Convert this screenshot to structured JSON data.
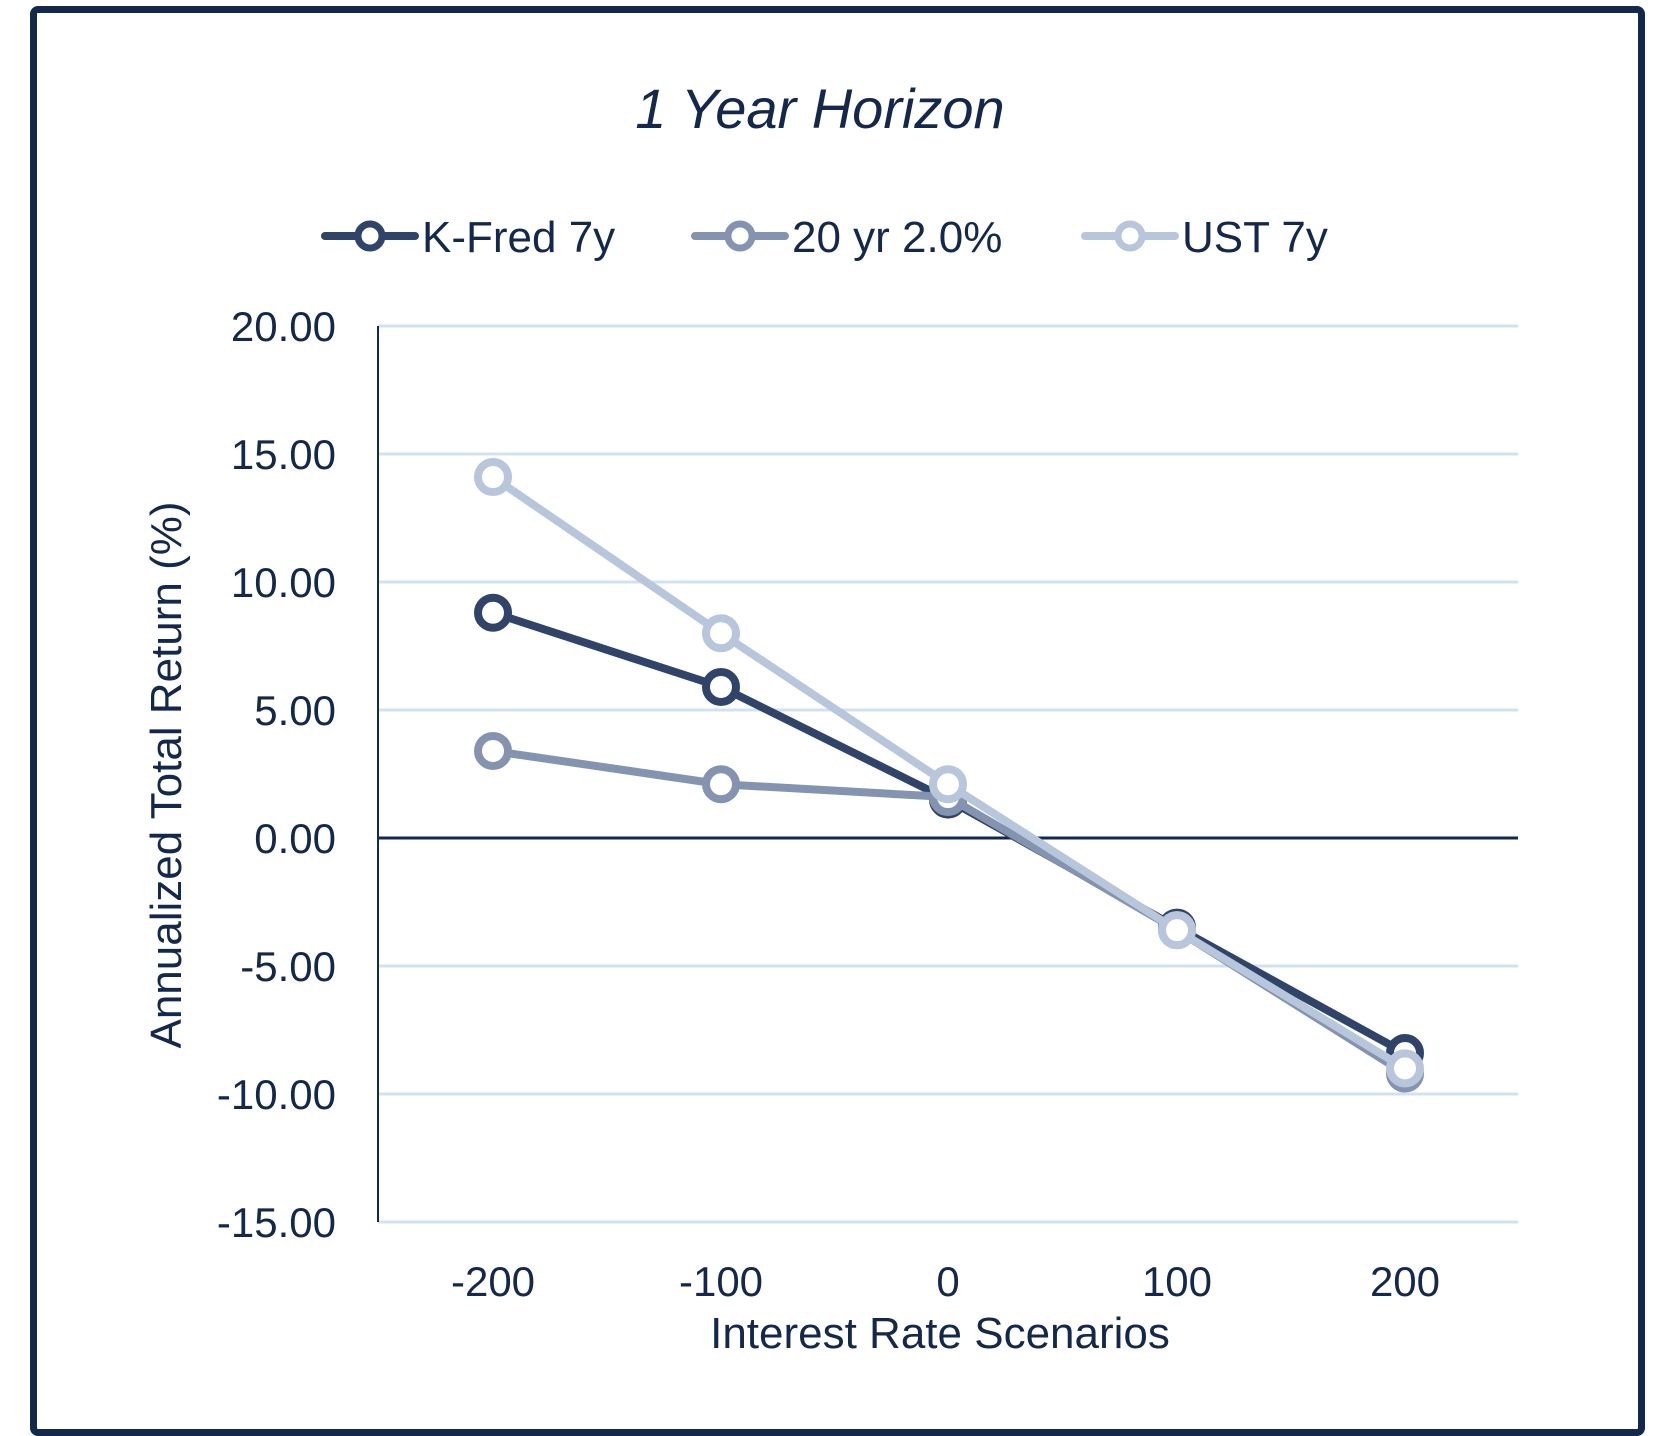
{
  "chart_data": {
    "type": "line",
    "title": "1 Year Horizon",
    "xlabel": "Interest Rate Scenarios",
    "ylabel": "Annualized Total Return (%)",
    "x": [
      -200,
      -100,
      0,
      100,
      200
    ],
    "x_tick_labels": [
      "-200",
      "-100",
      "0",
      "100",
      "200"
    ],
    "ylim": [
      -15,
      20
    ],
    "y_ticks": [
      20,
      15,
      10,
      5,
      0,
      -5,
      -10,
      -15
    ],
    "y_tick_labels": [
      "20.00",
      "15.00",
      "10.00",
      "5.00",
      "0.00",
      "-5.00",
      "-10.00",
      "-15.00"
    ],
    "grid": true,
    "legend_position": "top",
    "series": [
      {
        "name": "K-Fred 7y",
        "color": "#2f4468",
        "values": [
          8.8,
          5.9,
          1.5,
          -3.5,
          -8.4
        ]
      },
      {
        "name": "20 yr 2.0%",
        "color": "#8494b0",
        "values": [
          3.4,
          2.1,
          1.6,
          -3.6,
          -9.2
        ]
      },
      {
        "name": "UST 7y",
        "color": "#b8c6dc",
        "values": [
          14.1,
          8.0,
          2.1,
          -3.6,
          -9.0
        ]
      }
    ]
  }
}
